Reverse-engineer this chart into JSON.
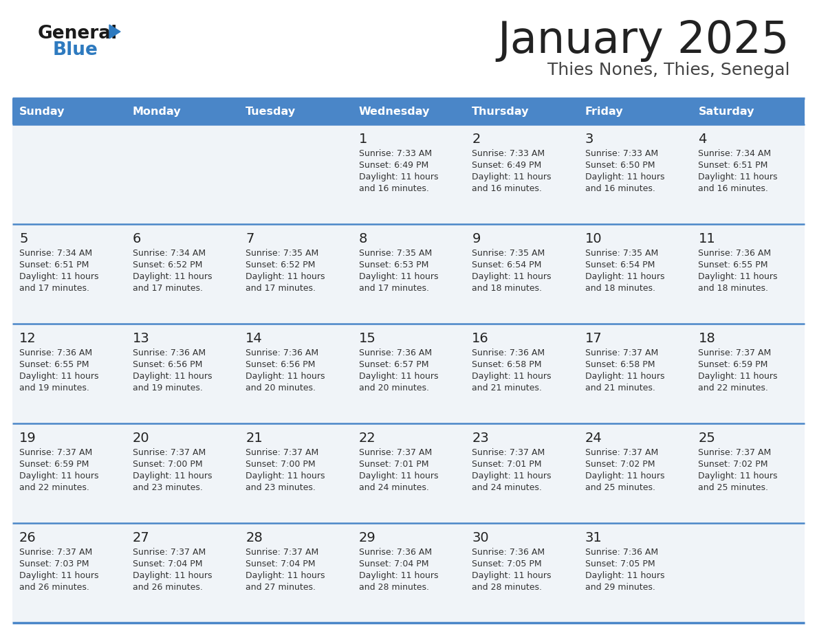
{
  "title": "January 2025",
  "subtitle": "Thies Nones, Thies, Senegal",
  "days_of_week": [
    "Sunday",
    "Monday",
    "Tuesday",
    "Wednesday",
    "Thursday",
    "Friday",
    "Saturday"
  ],
  "header_bg": "#4a86c8",
  "header_text": "#ffffff",
  "row_bg": "#f0f4f8",
  "cell_text_color": "#333333",
  "day_num_color": "#222222",
  "divider_color": "#4a86c8",
  "title_color": "#222222",
  "subtitle_color": "#444444",
  "logo_general_color": "#1a1a1a",
  "logo_blue_color": "#2e7abf",
  "calendar_data": [
    [
      {
        "day": null,
        "sunrise": null,
        "sunset": null,
        "daylight": null
      },
      {
        "day": null,
        "sunrise": null,
        "sunset": null,
        "daylight": null
      },
      {
        "day": null,
        "sunrise": null,
        "sunset": null,
        "daylight": null
      },
      {
        "day": 1,
        "sunrise": "7:33 AM",
        "sunset": "6:49 PM",
        "daylight": "11 hours\nand 16 minutes."
      },
      {
        "day": 2,
        "sunrise": "7:33 AM",
        "sunset": "6:49 PM",
        "daylight": "11 hours\nand 16 minutes."
      },
      {
        "day": 3,
        "sunrise": "7:33 AM",
        "sunset": "6:50 PM",
        "daylight": "11 hours\nand 16 minutes."
      },
      {
        "day": 4,
        "sunrise": "7:34 AM",
        "sunset": "6:51 PM",
        "daylight": "11 hours\nand 16 minutes."
      }
    ],
    [
      {
        "day": 5,
        "sunrise": "7:34 AM",
        "sunset": "6:51 PM",
        "daylight": "11 hours\nand 17 minutes."
      },
      {
        "day": 6,
        "sunrise": "7:34 AM",
        "sunset": "6:52 PM",
        "daylight": "11 hours\nand 17 minutes."
      },
      {
        "day": 7,
        "sunrise": "7:35 AM",
        "sunset": "6:52 PM",
        "daylight": "11 hours\nand 17 minutes."
      },
      {
        "day": 8,
        "sunrise": "7:35 AM",
        "sunset": "6:53 PM",
        "daylight": "11 hours\nand 17 minutes."
      },
      {
        "day": 9,
        "sunrise": "7:35 AM",
        "sunset": "6:54 PM",
        "daylight": "11 hours\nand 18 minutes."
      },
      {
        "day": 10,
        "sunrise": "7:35 AM",
        "sunset": "6:54 PM",
        "daylight": "11 hours\nand 18 minutes."
      },
      {
        "day": 11,
        "sunrise": "7:36 AM",
        "sunset": "6:55 PM",
        "daylight": "11 hours\nand 18 minutes."
      }
    ],
    [
      {
        "day": 12,
        "sunrise": "7:36 AM",
        "sunset": "6:55 PM",
        "daylight": "11 hours\nand 19 minutes."
      },
      {
        "day": 13,
        "sunrise": "7:36 AM",
        "sunset": "6:56 PM",
        "daylight": "11 hours\nand 19 minutes."
      },
      {
        "day": 14,
        "sunrise": "7:36 AM",
        "sunset": "6:56 PM",
        "daylight": "11 hours\nand 20 minutes."
      },
      {
        "day": 15,
        "sunrise": "7:36 AM",
        "sunset": "6:57 PM",
        "daylight": "11 hours\nand 20 minutes."
      },
      {
        "day": 16,
        "sunrise": "7:36 AM",
        "sunset": "6:58 PM",
        "daylight": "11 hours\nand 21 minutes."
      },
      {
        "day": 17,
        "sunrise": "7:37 AM",
        "sunset": "6:58 PM",
        "daylight": "11 hours\nand 21 minutes."
      },
      {
        "day": 18,
        "sunrise": "7:37 AM",
        "sunset": "6:59 PM",
        "daylight": "11 hours\nand 22 minutes."
      }
    ],
    [
      {
        "day": 19,
        "sunrise": "7:37 AM",
        "sunset": "6:59 PM",
        "daylight": "11 hours\nand 22 minutes."
      },
      {
        "day": 20,
        "sunrise": "7:37 AM",
        "sunset": "7:00 PM",
        "daylight": "11 hours\nand 23 minutes."
      },
      {
        "day": 21,
        "sunrise": "7:37 AM",
        "sunset": "7:00 PM",
        "daylight": "11 hours\nand 23 minutes."
      },
      {
        "day": 22,
        "sunrise": "7:37 AM",
        "sunset": "7:01 PM",
        "daylight": "11 hours\nand 24 minutes."
      },
      {
        "day": 23,
        "sunrise": "7:37 AM",
        "sunset": "7:01 PM",
        "daylight": "11 hours\nand 24 minutes."
      },
      {
        "day": 24,
        "sunrise": "7:37 AM",
        "sunset": "7:02 PM",
        "daylight": "11 hours\nand 25 minutes."
      },
      {
        "day": 25,
        "sunrise": "7:37 AM",
        "sunset": "7:02 PM",
        "daylight": "11 hours\nand 25 minutes."
      }
    ],
    [
      {
        "day": 26,
        "sunrise": "7:37 AM",
        "sunset": "7:03 PM",
        "daylight": "11 hours\nand 26 minutes."
      },
      {
        "day": 27,
        "sunrise": "7:37 AM",
        "sunset": "7:04 PM",
        "daylight": "11 hours\nand 26 minutes."
      },
      {
        "day": 28,
        "sunrise": "7:37 AM",
        "sunset": "7:04 PM",
        "daylight": "11 hours\nand 27 minutes."
      },
      {
        "day": 29,
        "sunrise": "7:36 AM",
        "sunset": "7:04 PM",
        "daylight": "11 hours\nand 28 minutes."
      },
      {
        "day": 30,
        "sunrise": "7:36 AM",
        "sunset": "7:05 PM",
        "daylight": "11 hours\nand 28 minutes."
      },
      {
        "day": 31,
        "sunrise": "7:36 AM",
        "sunset": "7:05 PM",
        "daylight": "11 hours\nand 29 minutes."
      },
      {
        "day": null,
        "sunrise": null,
        "sunset": null,
        "daylight": null
      }
    ]
  ]
}
